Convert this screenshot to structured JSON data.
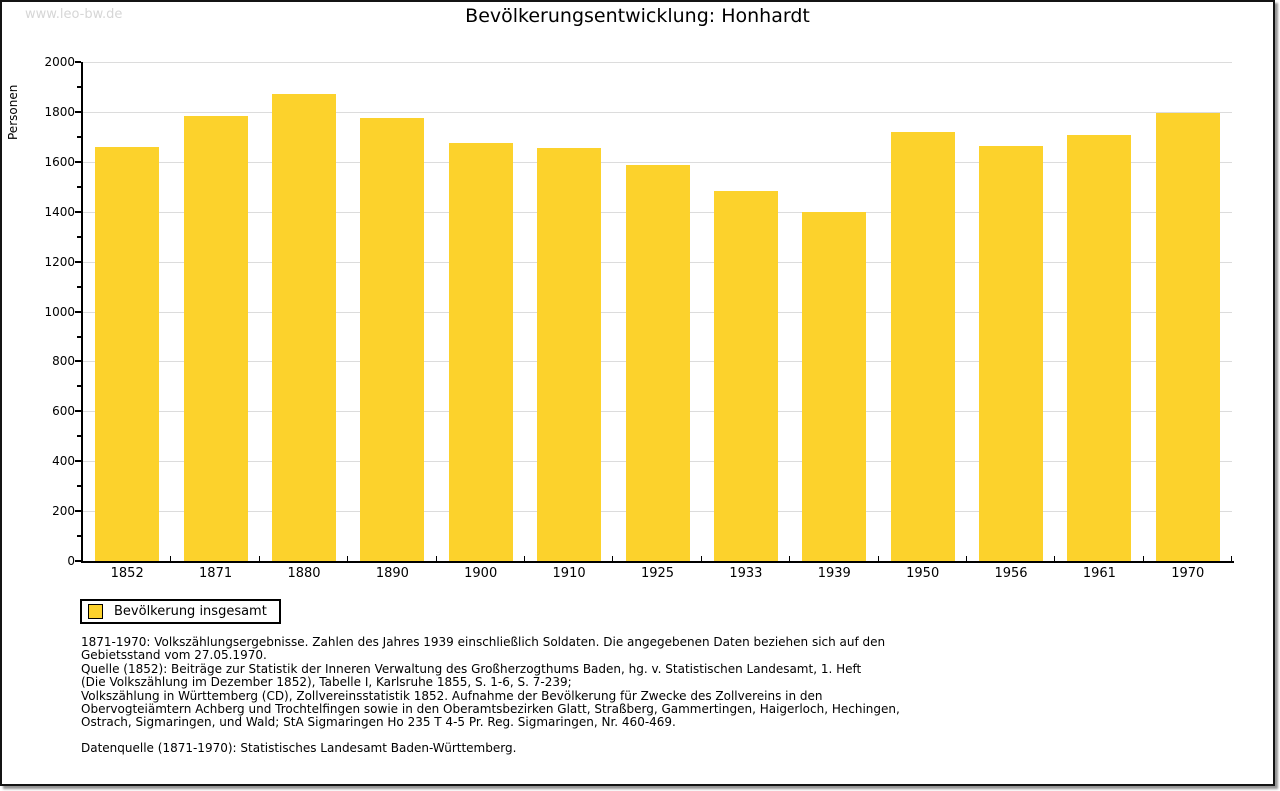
{
  "watermark": "www.leo-bw.de",
  "title": "Bevölkerungsentwicklung: Honhardt",
  "chart_data": {
    "type": "bar",
    "title": "Bevölkerungsentwicklung: Honhardt",
    "xlabel": "",
    "ylabel": "Personen",
    "ylim": [
      0,
      2000
    ],
    "ytick_step": 200,
    "ytick_labels": [
      "0",
      "200",
      "400",
      "600",
      "800",
      "1000",
      "1200",
      "1400",
      "1600",
      "1800",
      "2000"
    ],
    "grid": true,
    "legend_position": "bottom-left",
    "categories": [
      "1852",
      "1871",
      "1880",
      "1890",
      "1900",
      "1910",
      "1925",
      "1933",
      "1939",
      "1950",
      "1956",
      "1961",
      "1970"
    ],
    "series": [
      {
        "name": "Bevölkerung insgesamt",
        "color": "#fcd22c",
        "values": [
          1660,
          1784,
          1871,
          1774,
          1674,
          1654,
          1588,
          1484,
          1397,
          1719,
          1664,
          1706,
          1794
        ]
      }
    ]
  },
  "legend": {
    "label": "Bevölkerung insgesamt"
  },
  "footnotes": {
    "lines": [
      "1871-1970: Volkszählungsergebnisse. Zahlen des Jahres 1939 einschließlich Soldaten. Die angegebenen Daten beziehen sich auf den",
      "Gebietsstand vom 27.05.1970.",
      "Quelle (1852): Beiträge zur Statistik der Inneren Verwaltung des Großherzogthums Baden, hg. v. Statistischen Landesamt, 1. Heft",
      "(Die Volkszählung im Dezember 1852), Tabelle I, Karlsruhe 1855, S. 1-6, S. 7-239;",
      "Volkszählung in Württemberg (CD), Zollvereinsstatistik 1852. Aufnahme der Bevölkerung für Zwecke des Zollvereins in den",
      "Obervogteiämtern Achberg und Trochtelfingen sowie in den Oberamtsbezirken Glatt, Straßberg, Gammertingen, Haigerloch, Hechingen,",
      "Ostrach, Sigmaringen, und Wald; StA Sigmaringen Ho 235 T 4-5 Pr. Reg. Sigmaringen, Nr. 460-469."
    ],
    "datasource": "Datenquelle (1871-1970): Statistisches Landesamt Baden-Württemberg."
  },
  "colors": {
    "bar": "#fcd22c",
    "grid": "#dcdcdc",
    "axis": "#000000",
    "watermark": "#d6d6d6"
  }
}
